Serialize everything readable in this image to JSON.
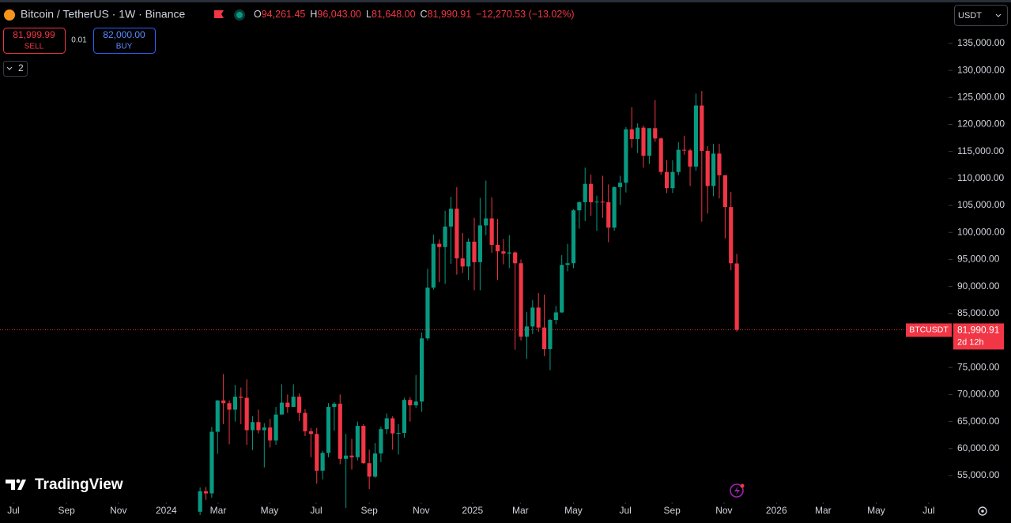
{
  "header": {
    "symbol": "Bitcoin / TetherUS · 1W · Binance",
    "ohlc": [
      {
        "label": "O",
        "value": "94,261.45"
      },
      {
        "label": "H",
        "value": "96,043.00"
      },
      {
        "label": "L",
        "value": "81,648.00"
      },
      {
        "label": "C",
        "value": "81,990.91"
      }
    ],
    "change": "−12,270.53 (−13.02%)"
  },
  "trade": {
    "sell_price": "81,999.99",
    "sell": "SELL",
    "spread": "0.01",
    "buy_price": "82,000.00",
    "buy": "BUY",
    "indicators": "2",
    "currency": "USDT"
  },
  "price_label": {
    "symbol": "BTCUSDT",
    "value": "81,990.91",
    "countdown": "2d 12h"
  },
  "logo": "TradingView",
  "chart_data": {
    "type": "candlestick",
    "up_color": "#089981",
    "down_color": "#f23645",
    "open": [
      48300,
      52100,
      51700,
      63100,
      68900,
      68400,
      67200,
      69600,
      69400,
      63400,
      64900,
      63400,
      63900,
      61500,
      66300,
      68500,
      67700,
      69600,
      66600,
      63200,
      62700,
      55900,
      59200,
      67700,
      68300,
      58100,
      58700,
      58400,
      64200,
      57300,
      54800,
      59100,
      63600,
      65600,
      62800,
      62900,
      69000,
      68000,
      68700,
      80400,
      89800,
      97900,
      97300,
      101100,
      104400,
      95200,
      93700,
      98300,
      94500,
      101300,
      102600,
      97700,
      96500,
      96100,
      96300,
      94300,
      80700,
      82600,
      86100,
      82400,
      78400,
      83800,
      85200,
      94000,
      94300,
      104100,
      105600,
      109000,
      105600,
      105700,
      105600,
      100900,
      108400,
      109200,
      119100,
      117300,
      119400,
      114200,
      119300,
      117400,
      111200,
      108200,
      111200,
      115300,
      115200,
      112200,
      123500,
      115100,
      108600,
      114600,
      110600,
      104700,
      94261.45
    ],
    "high": [
      52800,
      52900,
      64000,
      69000,
      73800,
      68900,
      71800,
      71300,
      72800,
      66000,
      67200,
      64700,
      65500,
      67700,
      71900,
      70000,
      71900,
      70200,
      67300,
      63800,
      63800,
      59600,
      68400,
      68600,
      70000,
      62700,
      61800,
      65000,
      64500,
      59800,
      61000,
      64100,
      66500,
      66000,
      64500,
      69400,
      69500,
      73600,
      81500,
      93300,
      99600,
      98700,
      104000,
      106600,
      108400,
      99900,
      98900,
      102700,
      106400,
      109600,
      106500,
      102500,
      98800,
      99500,
      96500,
      95000,
      85300,
      87500,
      88800,
      88500,
      84000,
      86400,
      95800,
      97900,
      104300,
      105800,
      112000,
      110700,
      106800,
      110500,
      108900,
      108500,
      110500,
      119500,
      123200,
      120200,
      119800,
      119300,
      124500,
      117600,
      113400,
      113400,
      116700,
      117900,
      115500,
      125700,
      126200,
      116000,
      116400,
      116400,
      110600,
      107500,
      96043
    ],
    "low": [
      47700,
      50500,
      50900,
      59000,
      64500,
      60800,
      65000,
      64500,
      60700,
      59700,
      62800,
      56500,
      60200,
      60700,
      66300,
      66600,
      68400,
      65100,
      62300,
      58400,
      53500,
      54300,
      58400,
      63300,
      57100,
      49000,
      56100,
      57800,
      57200,
      52500,
      54600,
      57500,
      62700,
      59800,
      58900,
      62000,
      65000,
      67500,
      66800,
      80000,
      89400,
      90800,
      90500,
      94200,
      92200,
      92500,
      91200,
      89300,
      89300,
      99500,
      96200,
      91200,
      94100,
      93400,
      78300,
      80000,
      76600,
      81200,
      81600,
      77100,
      74500,
      83000,
      85100,
      92800,
      93400,
      100700,
      102100,
      103100,
      100300,
      102700,
      98200,
      100300,
      105100,
      107400,
      115700,
      114700,
      112000,
      112700,
      116800,
      110700,
      107300,
      107300,
      110600,
      114400,
      108600,
      111400,
      102000,
      103500,
      106700,
      106300,
      98900,
      93000,
      81648
    ],
    "close": [
      52100,
      51700,
      63100,
      68900,
      68400,
      67200,
      69600,
      69400,
      63400,
      64900,
      63400,
      63900,
      61500,
      66300,
      68500,
      67700,
      69600,
      66600,
      63200,
      62700,
      55900,
      59200,
      67700,
      68300,
      58100,
      58700,
      58400,
      64200,
      57300,
      54800,
      59100,
      63600,
      65600,
      62800,
      62900,
      69000,
      68000,
      68700,
      80400,
      89800,
      97900,
      97300,
      101100,
      104400,
      95200,
      93700,
      98300,
      94500,
      101300,
      102600,
      97700,
      96500,
      96100,
      96300,
      94300,
      80700,
      82600,
      86100,
      82400,
      78400,
      83800,
      85200,
      94000,
      94300,
      104100,
      105600,
      109000,
      105600,
      105700,
      105600,
      100900,
      108400,
      109200,
      119100,
      117300,
      119400,
      114200,
      119300,
      117400,
      111200,
      108200,
      111200,
      115300,
      115200,
      112200,
      123500,
      115100,
      108600,
      114600,
      110600,
      104700,
      94300,
      81990.91
    ],
    "ylim": [
      50900,
      142300
    ],
    "yticks": [
      {
        "value": 55000,
        "label": "55,000.00"
      },
      {
        "value": 60000,
        "label": "60,000.00"
      },
      {
        "value": 65000,
        "label": "65,000.00"
      },
      {
        "value": 70000,
        "label": "70,000.00"
      },
      {
        "value": 75000,
        "label": "75,000.00"
      },
      {
        "value": 85000,
        "label": "85,000.00"
      },
      {
        "value": 90000,
        "label": "90,000.00"
      },
      {
        "value": 95000,
        "label": "95,000.00"
      },
      {
        "value": 100000,
        "label": "100,000.00"
      },
      {
        "value": 105000,
        "label": "105,000.00"
      },
      {
        "value": 110000,
        "label": "110,000.00"
      },
      {
        "value": 115000,
        "label": "115,000.00"
      },
      {
        "value": 120000,
        "label": "120,000.00"
      },
      {
        "value": 125000,
        "label": "125,000.00"
      },
      {
        "value": 130000,
        "label": "130,000.00"
      },
      {
        "value": 135000,
        "label": "135,000.00"
      }
    ],
    "xlim": [
      -34.3,
      128.3
    ],
    "xticks": [
      {
        "value": -32.0,
        "label": "Jul"
      },
      {
        "value": -22.9,
        "label": "Sep"
      },
      {
        "value": -14.0,
        "label": "Nov"
      },
      {
        "value": -5.8,
        "label": "2024"
      },
      {
        "value": 3.1,
        "label": "Mar"
      },
      {
        "value": 11.9,
        "label": "May"
      },
      {
        "value": 19.9,
        "label": "Jul"
      },
      {
        "value": 29.0,
        "label": "Sep"
      },
      {
        "value": 37.9,
        "label": "Nov"
      },
      {
        "value": 46.7,
        "label": "2025"
      },
      {
        "value": 54.9,
        "label": "Mar"
      },
      {
        "value": 64.0,
        "label": "May"
      },
      {
        "value": 72.9,
        "label": "Jul"
      },
      {
        "value": 80.9,
        "label": "Sep"
      },
      {
        "value": 89.8,
        "label": "Nov"
      },
      {
        "value": 98.8,
        "label": "2026"
      },
      {
        "value": 106.8,
        "label": "Mar"
      },
      {
        "value": 115.9,
        "label": "May"
      },
      {
        "value": 124.9,
        "label": "Jul"
      }
    ],
    "grid": false
  }
}
